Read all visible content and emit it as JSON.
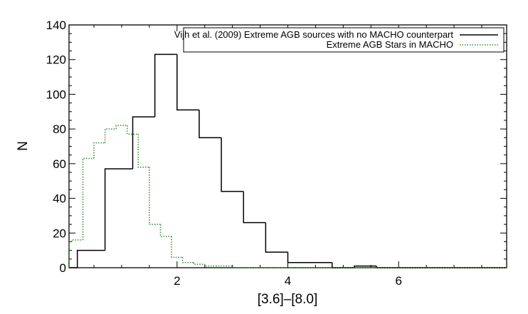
{
  "chart_data": {
    "type": "histogram",
    "xlabel": "[3.6]–[8.0]",
    "ylabel": "N",
    "xlim": [
      0.05,
      7.95
    ],
    "ylim": [
      0,
      140
    ],
    "x_ticks": [
      2,
      4,
      6
    ],
    "y_ticks": [
      0,
      20,
      40,
      60,
      80,
      100,
      120,
      140
    ],
    "grid": false,
    "legend_position": "top-right",
    "series": [
      {
        "name": "Vijh et al. (2009) Extreme AGB sources with no MACHO counterpart",
        "style": "solid",
        "color": "#000000",
        "bin_edges": [
          0.05,
          0.2,
          0.7,
          1.2,
          1.6,
          2.0,
          2.4,
          2.8,
          3.2,
          3.6,
          4.0,
          4.8,
          5.2,
          5.6,
          6.0,
          6.4,
          6.8,
          7.2,
          7.6,
          7.95
        ],
        "counts": [
          0,
          10,
          57,
          87,
          123,
          91,
          75,
          44,
          26,
          9,
          3,
          0,
          1,
          0,
          0,
          0,
          0,
          0,
          0
        ]
      },
      {
        "name": "Extreme AGB Stars in MACHO",
        "style": "dotted",
        "color": "#2e8b2e",
        "bin_edges": [
          0.05,
          0.1,
          0.3,
          0.5,
          0.7,
          0.9,
          1.1,
          1.3,
          1.5,
          1.7,
          1.9,
          2.1,
          2.3,
          2.5,
          2.7,
          3.0,
          3.3,
          3.7,
          7.95
        ],
        "counts": [
          15,
          16,
          63,
          72,
          80,
          82,
          77,
          58,
          25,
          18,
          6,
          3,
          2,
          1,
          1,
          0,
          0,
          0
        ]
      }
    ]
  }
}
